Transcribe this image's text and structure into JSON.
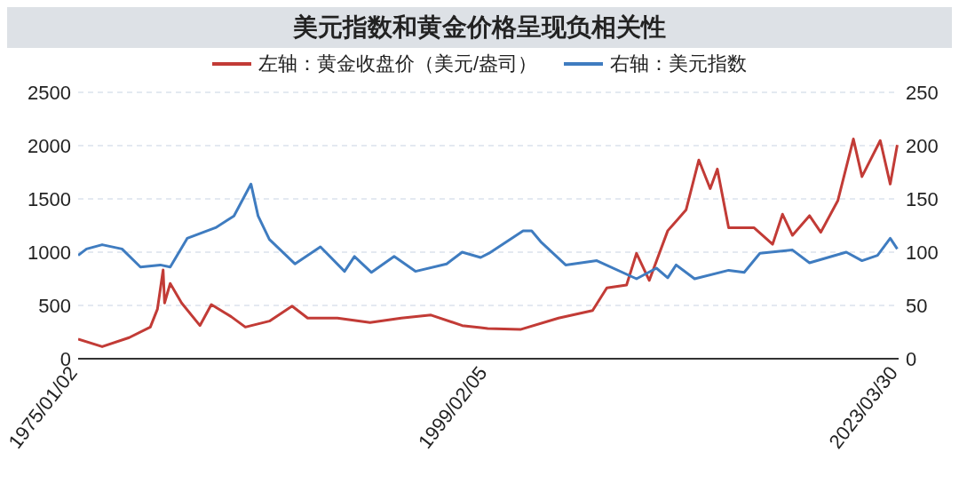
{
  "chart_data": {
    "type": "line",
    "title": "美元指数和黄金价格呈现负相关性",
    "series": [
      {
        "name": "左轴：黄金收盘价（美元/盎司）",
        "color": "#c23b36",
        "x": [
          "1975-01-02",
          "1976-06",
          "1978-01",
          "1979-04",
          "1979-09",
          "1980-01",
          "1980-02",
          "1980-06",
          "1981-02",
          "1982-03",
          "1982-11",
          "1984-01",
          "1984-11",
          "1986-04",
          "1987-08",
          "1988-07",
          "1990-04",
          "1992-03",
          "1994-01",
          "1995-10",
          "1997-08",
          "1998-09",
          "1999-02",
          "2001-01",
          "2003-04",
          "2005-04",
          "2006-02",
          "2007-04",
          "2007-11",
          "2008-08",
          "2009-09",
          "2010-10",
          "2011-07",
          "2012-03",
          "2012-08",
          "2013-04",
          "2014-10",
          "2015-11",
          "2016-06",
          "2017-01",
          "2018-01",
          "2018-09",
          "2019-09",
          "2020-08",
          "2021-02",
          "2022-03",
          "2022-10",
          "2023-03"
        ],
        "values": [
          184,
          113,
          198,
          297,
          466,
          833,
          523,
          706,
          523,
          311,
          508,
          395,
          297,
          353,
          494,
          381,
          381,
          339,
          381,
          410,
          311,
          291,
          283,
          274,
          381,
          452,
          664,
          692,
          989,
          735,
          1201,
          1398,
          1865,
          1596,
          1780,
          1229,
          1229,
          1074,
          1356,
          1158,
          1342,
          1187,
          1483,
          2062,
          1709,
          2048,
          1639,
          2006
        ]
      },
      {
        "name": "右轴：美元指数",
        "color": "#3f7cc0",
        "axis": "y2",
        "x": [
          "1975-01-02",
          "1975-07",
          "1976-06",
          "1977-08",
          "1978-09",
          "1979-11",
          "1980-06",
          "1981-06",
          "1983-02",
          "1984-03",
          "1985-03",
          "1985-08",
          "1986-04",
          "1987-10",
          "1989-04",
          "1990-09",
          "1991-04",
          "1992-04",
          "1993-08",
          "1994-11",
          "1996-09",
          "1997-08",
          "1998-09",
          "1999-03",
          "2001-03",
          "2001-09",
          "2002-04",
          "2003-09",
          "2005-07",
          "2007-11",
          "2009-01",
          "2009-09",
          "2010-03",
          "2011-04",
          "2013-04",
          "2014-03",
          "2015-02",
          "2017-01",
          "2018-01",
          "2020-03",
          "2021-02",
          "2022-01",
          "2022-10",
          "2023-03"
        ],
        "values": [
          97,
          103,
          107,
          103,
          86,
          88,
          86,
          113,
          123,
          134,
          164,
          134,
          112,
          89,
          105,
          82,
          96,
          81,
          96,
          82,
          89,
          100,
          95,
          99,
          120,
          120,
          109,
          88,
          92,
          75,
          85,
          76,
          88,
          75,
          83,
          81,
          99,
          102,
          90,
          100,
          92,
          97,
          113,
          103
        ]
      }
    ],
    "xlim": [
      "1975-01-02",
      "2023-03-30"
    ],
    "xticks": [
      {
        "value": "1975-01-02",
        "label": "1975/01/02"
      },
      {
        "value": "1999-02-05",
        "label": "1999/02/05"
      },
      {
        "value": "2023-03-30",
        "label": "2023/03/30"
      }
    ],
    "ylim": [
      0,
      2500
    ],
    "yticks": [
      0,
      500,
      1000,
      1500,
      2000,
      2500
    ],
    "y2lim": [
      0,
      250
    ],
    "y2ticks": [
      0,
      50,
      100,
      150,
      200,
      250
    ],
    "grid": "y",
    "legend": "top",
    "line_style": "solid",
    "marker": "none"
  }
}
